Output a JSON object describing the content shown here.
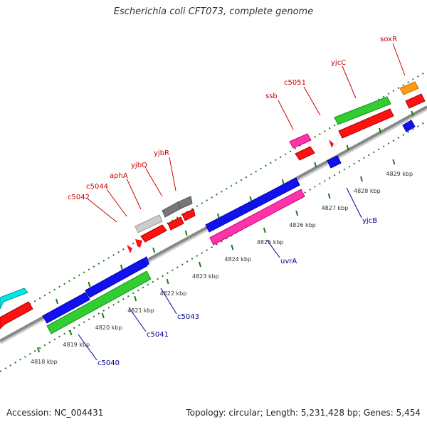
{
  "title": "Escherichia coli CFT073, complete genome",
  "footer": {
    "accession": "Accession: NC_004431",
    "summary": "Topology: circular; Length: 5,231,428 bp; Genes: 5,454"
  },
  "colors": {
    "forward_label": "#cc0000",
    "reverse_label": "#000099",
    "backbone": "#999999",
    "ticks": "#1a7a1a"
  },
  "ticks": [
    {
      "kbp": 4818,
      "label": "4818 kbp"
    },
    {
      "kbp": 4819,
      "label": "4819 kbp"
    },
    {
      "kbp": 4820,
      "label": "4820 kbp"
    },
    {
      "kbp": 4821,
      "label": "4821 kbp"
    },
    {
      "kbp": 4822,
      "label": "4822 kbp"
    },
    {
      "kbp": 4823,
      "label": "4823 kbp"
    },
    {
      "kbp": 4824,
      "label": "4824 kbp"
    },
    {
      "kbp": 4825,
      "label": "4825 kbp"
    },
    {
      "kbp": 4826,
      "label": "4826 kbp"
    },
    {
      "kbp": 4827,
      "label": "4827 kbp"
    },
    {
      "kbp": 4828,
      "label": "4828 kbp"
    },
    {
      "kbp": 4829,
      "label": "4829 kbp"
    }
  ],
  "forward_labels": [
    "c5042",
    "c5044",
    "aphA",
    "yjbQ",
    "yjbR",
    "ssb",
    "c5051",
    "yjcC",
    "soxR"
  ],
  "reverse_labels": [
    "c5040",
    "c5041",
    "c5043",
    "uvrA",
    "yjcB"
  ]
}
